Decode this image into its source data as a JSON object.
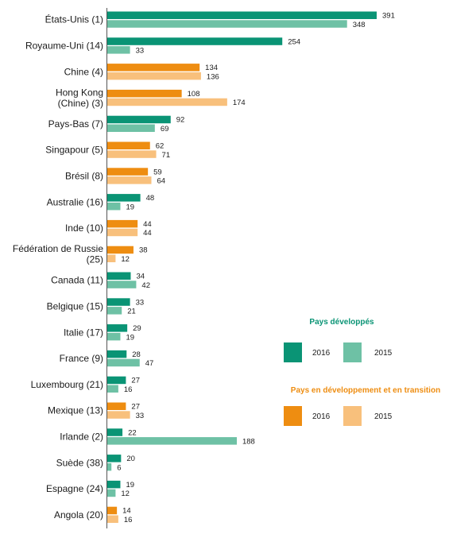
{
  "chart_data": {
    "type": "bar",
    "orientation": "horizontal",
    "categories": [
      {
        "label": [
          "États-Unis (1)"
        ],
        "group": "developed",
        "v2016": 391,
        "v2015": 348
      },
      {
        "label": [
          "Royaume-Uni (14)"
        ],
        "group": "developed",
        "v2016": 254,
        "v2015": 33
      },
      {
        "label": [
          "Chine (4)"
        ],
        "group": "developing",
        "v2016": 134,
        "v2015": 136
      },
      {
        "label": [
          "Hong Kong",
          "(Chine) (3)"
        ],
        "group": "developing",
        "v2016": 108,
        "v2015": 174
      },
      {
        "label": [
          "Pays-Bas (7)"
        ],
        "group": "developed",
        "v2016": 92,
        "v2015": 69
      },
      {
        "label": [
          "Singapour (5)"
        ],
        "group": "developing",
        "v2016": 62,
        "v2015": 71
      },
      {
        "label": [
          "Brésil (8)"
        ],
        "group": "developing",
        "v2016": 59,
        "v2015": 64
      },
      {
        "label": [
          "Australie (16)"
        ],
        "group": "developed",
        "v2016": 48,
        "v2015": 19
      },
      {
        "label": [
          "Inde (10)"
        ],
        "group": "developing",
        "v2016": 44,
        "v2015": 44
      },
      {
        "label": [
          "Fédération de Russie",
          "(25)"
        ],
        "group": "developing",
        "v2016": 38,
        "v2015": 12
      },
      {
        "label": [
          "Canada (11)"
        ],
        "group": "developed",
        "v2016": 34,
        "v2015": 42
      },
      {
        "label": [
          "Belgique (15)"
        ],
        "group": "developed",
        "v2016": 33,
        "v2015": 21
      },
      {
        "label": [
          "Italie (17)"
        ],
        "group": "developed",
        "v2016": 29,
        "v2015": 19
      },
      {
        "label": [
          "France (9)"
        ],
        "group": "developed",
        "v2016": 28,
        "v2015": 47
      },
      {
        "label": [
          "Luxembourg (21)"
        ],
        "group": "developed",
        "v2016": 27,
        "v2015": 16
      },
      {
        "label": [
          "Mexique (13)"
        ],
        "group": "developing",
        "v2016": 27,
        "v2015": 33
      },
      {
        "label": [
          "Irlande (2)"
        ],
        "group": "developed",
        "v2016": 22,
        "v2015": 188
      },
      {
        "label": [
          "Suède (38)"
        ],
        "group": "developed",
        "v2016": 20,
        "v2015": 6
      },
      {
        "label": [
          "Espagne (24)"
        ],
        "group": "developed",
        "v2016": 19,
        "v2015": 12
      },
      {
        "label": [
          "Angola (20)"
        ],
        "group": "developing",
        "v2016": 14,
        "v2015": 16
      }
    ],
    "series": [
      {
        "name": "2016"
      },
      {
        "name": "2015"
      }
    ],
    "xlim": [
      0,
      391
    ],
    "grid": false,
    "legend_position": "right",
    "colors": {
      "developed_2016": "#0a9475",
      "developed_2015": "#6ec1a5",
      "developing_2016": "#ee8d11",
      "developing_2015": "#f8c07c",
      "developed_title": "#0a9475",
      "developing_title": "#ee8d11"
    }
  },
  "legend": {
    "developed": {
      "title": "Pays développés",
      "label_2016": "2016",
      "label_2015": "2015"
    },
    "developing": {
      "title": "Pays en développement et en transition",
      "label_2016": "2016",
      "label_2015": "2015"
    }
  }
}
